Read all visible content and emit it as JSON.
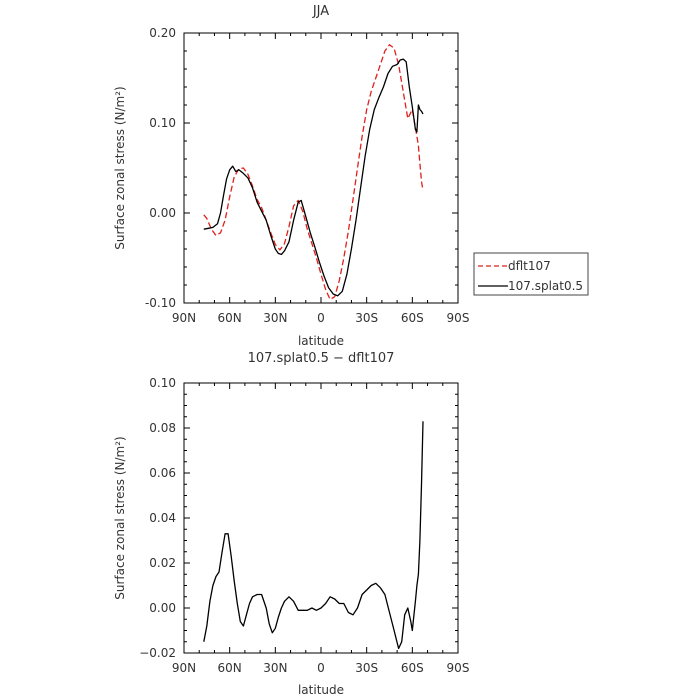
{
  "chart_data": [
    {
      "type": "line",
      "title": "JJA",
      "xlabel": "latitude",
      "ylabel": "Surface zonal stress (N/m²)",
      "xlim": [
        90,
        -90
      ],
      "ylim": [
        -0.1,
        0.2
      ],
      "x_ticks": [
        90,
        60,
        30,
        0,
        -30,
        -60,
        -90
      ],
      "x_tick_labels": [
        "90N",
        "60N",
        "30N",
        "0",
        "30S",
        "60S",
        "90S"
      ],
      "y_ticks": [
        -0.1,
        0.0,
        0.1,
        0.2
      ],
      "y_tick_labels": [
        "-0.10",
        "0.00",
        "0.10",
        "0.20"
      ],
      "legend_position": "outside-right",
      "series": [
        {
          "name": "dflt107",
          "color": "#e0201b",
          "dash": "dashed",
          "x": [
            77,
            75,
            72,
            69,
            66,
            63,
            60,
            57,
            54,
            51,
            48,
            45,
            42,
            39,
            36,
            33,
            30,
            27,
            24,
            21,
            18,
            15,
            12,
            9,
            6,
            3,
            0,
            -3,
            -6,
            -9,
            -12,
            -15,
            -18,
            -21,
            -24,
            -27,
            -30,
            -33,
            -36,
            -39,
            -42,
            -45,
            -48,
            -51,
            -54,
            -57,
            -60,
            -62,
            -64,
            -65,
            -66,
            -67
          ],
          "y": [
            -0.002,
            -0.006,
            -0.018,
            -0.025,
            -0.022,
            -0.008,
            0.018,
            0.04,
            0.049,
            0.05,
            0.043,
            0.03,
            0.015,
            0.006,
            -0.008,
            -0.022,
            -0.035,
            -0.041,
            -0.034,
            -0.015,
            0.008,
            0.014,
            0.002,
            -0.018,
            -0.034,
            -0.05,
            -0.068,
            -0.085,
            -0.096,
            -0.093,
            -0.075,
            -0.05,
            -0.02,
            0.015,
            0.05,
            0.085,
            0.115,
            0.135,
            0.15,
            0.165,
            0.18,
            0.187,
            0.183,
            0.165,
            0.135,
            0.105,
            0.115,
            0.095,
            0.075,
            0.055,
            0.035,
            0.025
          ]
        },
        {
          "name": "107.splat0.5",
          "color": "#000000",
          "dash": "solid",
          "x": [
            77,
            74,
            71,
            68,
            66,
            64,
            62,
            60,
            58,
            56,
            54,
            51,
            48,
            45,
            42,
            39,
            36,
            33,
            30,
            28,
            26,
            24,
            21,
            18,
            15,
            13,
            10,
            7,
            4,
            1,
            -2,
            -5,
            -8,
            -11,
            -14,
            -17,
            -20,
            -23,
            -26,
            -29,
            -32,
            -35,
            -38,
            -41,
            -44,
            -47,
            -50,
            -52,
            -54,
            -56,
            -58,
            -60,
            -61,
            -62,
            -63,
            -64,
            -65,
            -66,
            -67
          ],
          "y": [
            -0.018,
            -0.017,
            -0.016,
            -0.012,
            0.0,
            0.02,
            0.038,
            0.048,
            0.052,
            0.046,
            0.048,
            0.044,
            0.039,
            0.028,
            0.012,
            0.002,
            -0.008,
            -0.025,
            -0.04,
            -0.045,
            -0.046,
            -0.042,
            -0.032,
            -0.008,
            0.012,
            0.014,
            -0.004,
            -0.022,
            -0.038,
            -0.055,
            -0.07,
            -0.083,
            -0.09,
            -0.092,
            -0.087,
            -0.068,
            -0.04,
            -0.008,
            0.028,
            0.063,
            0.093,
            0.115,
            0.128,
            0.14,
            0.155,
            0.163,
            0.165,
            0.17,
            0.171,
            0.168,
            0.14,
            0.118,
            0.105,
            0.093,
            0.09,
            0.12,
            0.115,
            0.113,
            0.11
          ]
        }
      ]
    },
    {
      "type": "line",
      "title": "107.splat0.5 − dflt107",
      "xlabel": "latitude",
      "ylabel": "Surface zonal stress (N/m²)",
      "xlim": [
        90,
        -90
      ],
      "ylim": [
        -0.02,
        0.1
      ],
      "x_ticks": [
        90,
        60,
        30,
        0,
        -30,
        -60,
        -90
      ],
      "x_tick_labels": [
        "90N",
        "60N",
        "30N",
        "0",
        "30S",
        "60S",
        "90S"
      ],
      "y_ticks": [
        -0.02,
        0.0,
        0.02,
        0.04,
        0.06,
        0.08,
        0.1
      ],
      "y_tick_labels": [
        "−0.02",
        "0.00",
        "0.02",
        "0.04",
        "0.06",
        "0.08",
        "0.10"
      ],
      "series": [
        {
          "color": "#000000",
          "dash": "solid",
          "x": [
            77,
            75,
            73,
            71,
            69,
            67,
            65,
            63,
            61,
            59,
            57,
            55,
            53,
            51,
            49,
            47,
            45,
            42,
            39,
            36,
            34,
            32,
            30,
            28,
            26,
            24,
            21,
            18,
            15,
            12,
            9,
            6,
            3,
            0,
            -3,
            -6,
            -9,
            -12,
            -15,
            -18,
            -21,
            -24,
            -27,
            -30,
            -33,
            -36,
            -39,
            -42,
            -45,
            -48,
            -51,
            -53,
            -55,
            -57,
            -59,
            -60,
            -62,
            -63,
            -64,
            -65,
            -66,
            -67
          ],
          "y": [
            -0.015,
            -0.008,
            0.003,
            0.01,
            0.014,
            0.016,
            0.025,
            0.033,
            0.033,
            0.023,
            0.012,
            0.002,
            -0.006,
            -0.008,
            -0.003,
            0.002,
            0.005,
            0.006,
            0.006,
            0.0,
            -0.007,
            -0.011,
            -0.009,
            -0.004,
            0.0,
            0.003,
            0.005,
            0.003,
            -0.001,
            -0.001,
            -0.001,
            0.0,
            -0.001,
            0.0,
            0.002,
            0.005,
            0.004,
            0.002,
            0.002,
            -0.002,
            -0.003,
            0.0,
            0.006,
            0.008,
            0.01,
            0.011,
            0.009,
            0.006,
            -0.002,
            -0.01,
            -0.018,
            -0.015,
            -0.003,
            0.0,
            -0.006,
            -0.01,
            0.003,
            0.01,
            0.015,
            0.03,
            0.055,
            0.083
          ]
        }
      ]
    }
  ]
}
